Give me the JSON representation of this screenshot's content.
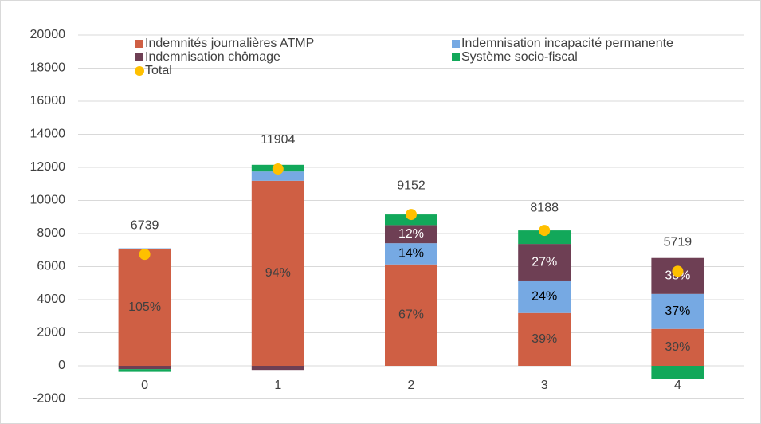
{
  "chart_data": {
    "type": "bar",
    "stacked": true,
    "categories": [
      "0",
      "1",
      "2",
      "3",
      "4"
    ],
    "series": [
      {
        "name": "Indemnités journalières ATMP",
        "color": "#cf5f44",
        "values": [
          7076,
          11190,
          6132,
          3193,
          2230
        ],
        "segment_labels": [
          "105%",
          "94%",
          "67%",
          "39%",
          "39%"
        ]
      },
      {
        "name": "Indemnisation incapacité permanente",
        "color": "#76a9e3",
        "values": [
          30,
          560,
          1281,
          1965,
          2116
        ],
        "segment_labels": [
          null,
          null,
          "14%",
          "24%",
          "37%"
        ]
      },
      {
        "name": "Indemnisation chômage",
        "color": "#6e3f54",
        "values": [
          -200,
          -250,
          1098,
          2211,
          2173
        ],
        "segment_labels": [
          null,
          null,
          "12%",
          "27%",
          "38%"
        ]
      },
      {
        "name": "Système socio-fiscal",
        "color": "#12a85a",
        "values": [
          -167,
          404,
          641,
          819,
          -800
        ]
      },
      {
        "name": "Total",
        "type": "scatter",
        "color": "#ffc000",
        "values": [
          6739,
          11904,
          9152,
          8188,
          5719
        ]
      }
    ],
    "ylim": [
      -2000,
      20000
    ],
    "yticks": [
      -2000,
      0,
      2000,
      4000,
      6000,
      8000,
      10000,
      12000,
      14000,
      16000,
      18000,
      20000
    ],
    "grid": true,
    "legend": "top"
  }
}
